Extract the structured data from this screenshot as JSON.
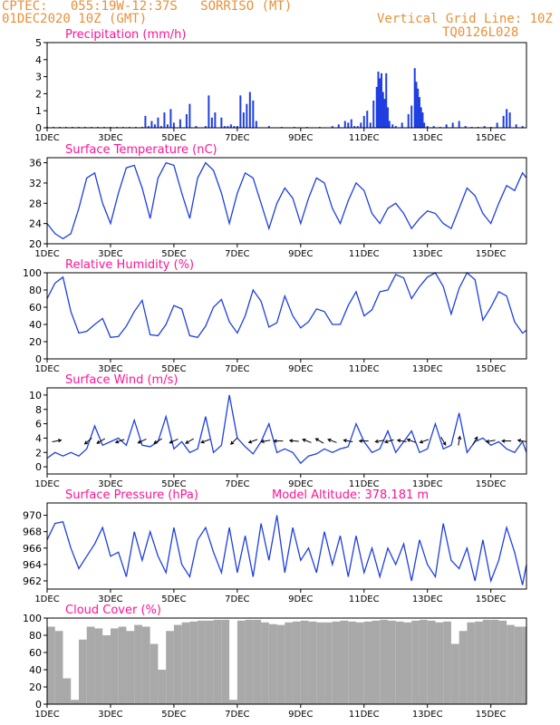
{
  "header": {
    "line1": "CPTEC:   055:19W-12:37S   SORRISO (MT)",
    "line2": "01DEC2020 10Z (GMT)",
    "grid_note": "Vertical Grid Line: 10Z",
    "code": "TQ0126L028",
    "color": "#e8903a"
  },
  "colors": {
    "title": "#ff1493",
    "series": "#1f3fe0",
    "cloud": "#a9a9a9"
  },
  "x_tick_labels": [
    "1DEC",
    "3DEC",
    "5DEC",
    "7DEC",
    "9DEC",
    "11DEC",
    "13DEC",
    "15DEC"
  ],
  "x_tick_days": [
    1,
    3,
    5,
    7,
    9,
    11,
    13,
    15
  ],
  "x_range_days": [
    1,
    16.125
  ],
  "chart_data": [
    {
      "type": "bar",
      "title": "Precipitation (mm/h)",
      "ylim": [
        0,
        5
      ],
      "yticks": [
        0,
        1,
        2,
        3,
        4,
        5
      ],
      "x": [
        1.0,
        1.2,
        1.4,
        1.6,
        1.8,
        2.0,
        2.2,
        2.4,
        2.6,
        2.8,
        3.0,
        3.2,
        3.4,
        3.6,
        3.8,
        4.0,
        4.1,
        4.2,
        4.3,
        4.4,
        4.5,
        4.6,
        4.7,
        4.8,
        4.9,
        5.0,
        5.2,
        5.4,
        5.5,
        5.7,
        6.0,
        6.1,
        6.2,
        6.3,
        6.5,
        6.6,
        6.7,
        6.8,
        6.9,
        7.0,
        7.1,
        7.2,
        7.3,
        7.4,
        7.5,
        7.6,
        8.0,
        8.4,
        8.8,
        9.2,
        9.6,
        10.0,
        10.2,
        10.4,
        10.5,
        10.6,
        10.7,
        10.8,
        10.9,
        11.0,
        11.1,
        11.2,
        11.3,
        11.4,
        11.45,
        11.5,
        11.55,
        11.6,
        11.65,
        11.7,
        11.75,
        11.8,
        11.9,
        12.0,
        12.2,
        12.4,
        12.5,
        12.6,
        12.65,
        12.7,
        12.75,
        12.8,
        12.85,
        12.9,
        13.0,
        13.2,
        13.4,
        13.6,
        13.8,
        14.0,
        14.2,
        14.4,
        14.6,
        14.8,
        15.0,
        15.2,
        15.4,
        15.5,
        15.6,
        15.8,
        16.0
      ],
      "values": [
        0.05,
        0.05,
        0.05,
        0.05,
        0.05,
        0.05,
        0.05,
        0.05,
        0.05,
        0.05,
        0.05,
        0.05,
        0.05,
        0.05,
        0.05,
        0.05,
        0.7,
        0.1,
        0.4,
        0.2,
        0.6,
        0.1,
        0.9,
        0.2,
        1.1,
        0.3,
        0.5,
        0.8,
        1.4,
        0.1,
        0.1,
        1.9,
        0.6,
        0.9,
        0.6,
        0.1,
        0.1,
        0.2,
        0.1,
        0.1,
        1.9,
        0.9,
        1.4,
        2.1,
        1.6,
        0.4,
        0.1,
        0.05,
        0.05,
        0.05,
        0.05,
        0.1,
        0.2,
        0.4,
        0.3,
        0.5,
        0.1,
        0.1,
        0.3,
        0.7,
        1.0,
        0.3,
        1.6,
        2.4,
        3.3,
        2.9,
        3.2,
        2.1,
        1.7,
        3.2,
        1.2,
        0.4,
        0.2,
        0.1,
        0.3,
        0.8,
        1.3,
        3.5,
        2.7,
        2.3,
        1.8,
        1.2,
        0.9,
        0.3,
        0.1,
        0.1,
        0.05,
        0.2,
        0.3,
        0.4,
        0.1,
        0.05,
        0.05,
        0.1,
        0.05,
        0.3,
        0.7,
        1.1,
        0.9,
        0.2,
        0.1
      ]
    },
    {
      "type": "line",
      "title": "Surface Temperature (nC)",
      "ylim": [
        20,
        37
      ],
      "yticks": [
        20,
        24,
        28,
        32,
        36
      ],
      "x": [
        1.0,
        1.25,
        1.5,
        1.75,
        2.0,
        2.25,
        2.5,
        2.75,
        3.0,
        3.25,
        3.5,
        3.75,
        4.0,
        4.25,
        4.5,
        4.75,
        5.0,
        5.25,
        5.5,
        5.75,
        6.0,
        6.25,
        6.5,
        6.75,
        7.0,
        7.25,
        7.5,
        7.75,
        8.0,
        8.25,
        8.5,
        8.75,
        9.0,
        9.25,
        9.5,
        9.75,
        10.0,
        10.25,
        10.5,
        10.75,
        11.0,
        11.25,
        11.5,
        11.75,
        12.0,
        12.25,
        12.5,
        12.75,
        13.0,
        13.25,
        13.5,
        13.75,
        14.0,
        14.25,
        14.5,
        14.75,
        15.0,
        15.25,
        15.5,
        15.75,
        16.0,
        16.125
      ],
      "values": [
        24.0,
        22.0,
        21.0,
        22.0,
        27.0,
        33.0,
        34.0,
        28.0,
        24.0,
        30.0,
        35.0,
        35.5,
        31.0,
        25.0,
        33.0,
        36.0,
        35.5,
        30.0,
        25.0,
        33.0,
        36.0,
        34.5,
        30.0,
        24.0,
        30.0,
        34.0,
        33.0,
        28.0,
        23.0,
        28.0,
        31.0,
        29.0,
        24.0,
        29.0,
        33.0,
        32.0,
        27.0,
        24.0,
        28.5,
        32.0,
        30.5,
        26.0,
        24.0,
        27.0,
        28.0,
        26.0,
        23.0,
        25.0,
        26.5,
        26.0,
        24.0,
        23.0,
        27.0,
        31.0,
        29.5,
        26.0,
        24.0,
        28.0,
        31.5,
        30.5,
        34.0,
        33.0
      ],
      "color": "#1f3fe0"
    },
    {
      "type": "line",
      "title": "Relative Humidity (%)",
      "ylim": [
        0,
        100
      ],
      "yticks": [
        0,
        20,
        40,
        60,
        80,
        100
      ],
      "x": [
        1.0,
        1.25,
        1.5,
        1.75,
        2.0,
        2.25,
        2.5,
        2.75,
        3.0,
        3.25,
        3.5,
        3.75,
        4.0,
        4.25,
        4.5,
        4.75,
        5.0,
        5.25,
        5.5,
        5.75,
        6.0,
        6.25,
        6.5,
        6.75,
        7.0,
        7.25,
        7.5,
        7.75,
        8.0,
        8.25,
        8.5,
        8.75,
        9.0,
        9.25,
        9.5,
        9.75,
        10.0,
        10.25,
        10.5,
        10.75,
        11.0,
        11.25,
        11.5,
        11.75,
        12.0,
        12.25,
        12.5,
        12.75,
        13.0,
        13.25,
        13.5,
        13.75,
        14.0,
        14.25,
        14.5,
        14.75,
        15.0,
        15.25,
        15.5,
        15.75,
        16.0,
        16.125
      ],
      "values": [
        70.0,
        88.0,
        95.0,
        55.0,
        30.0,
        32.0,
        40.0,
        47.0,
        25.0,
        26.0,
        38.0,
        55.0,
        68.0,
        28.0,
        27.0,
        40.0,
        62.0,
        58.0,
        27.0,
        25.0,
        38.0,
        60.0,
        69.0,
        43.0,
        30.0,
        50.0,
        80.0,
        67.0,
        37.0,
        42.0,
        73.0,
        50.0,
        36.0,
        43.0,
        58.0,
        55.0,
        40.0,
        40.0,
        62.0,
        78.0,
        50.0,
        57.0,
        78.0,
        80.0,
        98.0,
        94.0,
        70.0,
        84.0,
        95.0,
        100.0,
        84.0,
        52.0,
        82.0,
        100.0,
        92.0,
        45.0,
        60.0,
        78.0,
        73.0,
        43.0,
        30.0,
        33.0
      ],
      "color": "#1f3fe0"
    },
    {
      "type": "line",
      "title": "Surface Wind (m/s)",
      "ylim": [
        -1,
        11
      ],
      "yticks": [
        0,
        2,
        4,
        6,
        8,
        10
      ],
      "x": [
        1.0,
        1.25,
        1.5,
        1.75,
        2.0,
        2.25,
        2.5,
        2.75,
        3.0,
        3.25,
        3.5,
        3.75,
        4.0,
        4.25,
        4.5,
        4.75,
        5.0,
        5.25,
        5.5,
        5.75,
        6.0,
        6.25,
        6.5,
        6.75,
        7.0,
        7.25,
        7.5,
        7.75,
        8.0,
        8.25,
        8.5,
        8.75,
        9.0,
        9.25,
        9.5,
        9.75,
        10.0,
        10.25,
        10.5,
        10.75,
        11.0,
        11.25,
        11.5,
        11.75,
        12.0,
        12.25,
        12.5,
        12.75,
        13.0,
        13.25,
        13.5,
        13.75,
        14.0,
        14.25,
        14.5,
        14.75,
        15.0,
        15.25,
        15.5,
        15.75,
        16.0,
        16.125
      ],
      "values": [
        1.2,
        2.0,
        1.5,
        2.0,
        1.5,
        2.5,
        5.7,
        3.0,
        3.5,
        4.0,
        3.0,
        6.5,
        3.0,
        2.8,
        3.5,
        7.0,
        2.5,
        3.5,
        2.0,
        2.5,
        7.0,
        2.0,
        3.0,
        10.0,
        4.0,
        2.8,
        1.8,
        3.5,
        6.0,
        2.0,
        2.5,
        2.0,
        0.5,
        1.5,
        1.8,
        2.5,
        2.0,
        2.5,
        2.8,
        6.0,
        3.5,
        2.0,
        2.5,
        5.0,
        2.0,
        3.5,
        5.0,
        2.0,
        2.5,
        6.0,
        2.5,
        3.0,
        7.5,
        2.0,
        3.5,
        4.0,
        3.0,
        3.5,
        2.5,
        2.0,
        3.5,
        2.0
      ],
      "arrows_x": [
        1.3,
        2.3,
        2.7,
        3.3,
        4.0,
        4.5,
        5.0,
        5.5,
        6.0,
        6.9,
        7.5,
        7.9,
        8.3,
        8.8,
        9.2,
        9.6,
        10.0,
        10.5,
        11.0,
        11.5,
        11.8,
        12.2,
        12.5,
        12.9,
        13.5,
        14.0,
        14.5,
        15.0,
        15.5,
        16.0
      ],
      "arrows_dir_deg": [
        10,
        220,
        210,
        200,
        205,
        210,
        205,
        210,
        200,
        225,
        200,
        190,
        180,
        175,
        160,
        150,
        160,
        170,
        180,
        190,
        195,
        170,
        160,
        200,
        300,
        80,
        60,
        190,
        180,
        170
      ],
      "color": "#1f3fe0"
    },
    {
      "type": "line",
      "title": "Surface Pressure (hPa)",
      "annotation": "Model Altitude: 378.181 m",
      "ylim": [
        961,
        971.5
      ],
      "yticks": [
        962,
        964,
        966,
        968,
        970
      ],
      "x": [
        1.0,
        1.25,
        1.5,
        1.75,
        2.0,
        2.25,
        2.5,
        2.75,
        3.0,
        3.25,
        3.5,
        3.75,
        4.0,
        4.25,
        4.5,
        4.75,
        5.0,
        5.25,
        5.5,
        5.75,
        6.0,
        6.25,
        6.5,
        6.75,
        7.0,
        7.25,
        7.5,
        7.75,
        8.0,
        8.25,
        8.5,
        8.75,
        9.0,
        9.25,
        9.5,
        9.75,
        10.0,
        10.25,
        10.5,
        10.75,
        11.0,
        11.25,
        11.5,
        11.75,
        12.0,
        12.25,
        12.5,
        12.75,
        13.0,
        13.25,
        13.5,
        13.75,
        14.0,
        14.25,
        14.5,
        14.75,
        15.0,
        15.25,
        15.5,
        15.75,
        16.0,
        16.125
      ],
      "values": [
        967.0,
        969.0,
        969.2,
        966.0,
        963.5,
        965.0,
        966.5,
        968.5,
        965.0,
        965.5,
        962.5,
        968.0,
        964.5,
        968.0,
        965.0,
        963.0,
        968.5,
        964.0,
        962.5,
        967.0,
        968.5,
        965.5,
        963.0,
        968.5,
        963.0,
        967.5,
        962.5,
        969.0,
        964.5,
        970.0,
        963.0,
        968.5,
        964.5,
        966.0,
        963.0,
        968.0,
        964.0,
        967.5,
        962.5,
        967.5,
        963.0,
        966.0,
        962.5,
        966.0,
        964.0,
        966.5,
        962.0,
        967.0,
        964.0,
        962.5,
        969.0,
        964.5,
        963.5,
        966.0,
        962.0,
        967.0,
        962.0,
        964.5,
        968.5,
        965.5,
        961.5,
        964.0
      ],
      "color": "#1f3fe0"
    },
    {
      "type": "area",
      "title": "Cloud Cover (%)",
      "ylim": [
        0,
        100
      ],
      "yticks": [
        0,
        20,
        40,
        60,
        80,
        100
      ],
      "x": [
        1.0,
        1.25,
        1.5,
        1.75,
        2.0,
        2.25,
        2.5,
        2.75,
        3.0,
        3.25,
        3.5,
        3.75,
        4.0,
        4.25,
        4.5,
        4.75,
        5.0,
        5.25,
        5.5,
        5.75,
        6.0,
        6.25,
        6.5,
        6.75,
        7.0,
        7.25,
        7.5,
        7.75,
        8.0,
        8.25,
        8.5,
        8.75,
        9.0,
        9.25,
        9.5,
        9.75,
        10.0,
        10.25,
        10.5,
        10.75,
        11.0,
        11.25,
        11.5,
        11.75,
        12.0,
        12.25,
        12.5,
        12.75,
        13.0,
        13.25,
        13.5,
        13.75,
        14.0,
        14.25,
        14.5,
        14.75,
        15.0,
        15.25,
        15.5,
        15.75,
        16.0,
        16.125
      ],
      "values": [
        90.0,
        85.0,
        30.0,
        5.0,
        75.0,
        90.0,
        88.0,
        80.0,
        88.0,
        90.0,
        85.0,
        92.0,
        90.0,
        70.0,
        40.0,
        85.0,
        92.0,
        95.0,
        96.0,
        97.0,
        97.0,
        98.0,
        98.0,
        5.0,
        97.0,
        98.0,
        98.0,
        95.0,
        93.0,
        92.0,
        95.0,
        96.0,
        97.0,
        96.0,
        95.0,
        95.0,
        96.0,
        97.0,
        96.0,
        95.0,
        96.0,
        97.0,
        98.0,
        97.0,
        96.0,
        95.0,
        97.0,
        98.0,
        97.0,
        95.0,
        96.0,
        70.0,
        85.0,
        95.0,
        96.0,
        98.0,
        98.0,
        97.0,
        92.0,
        90.0,
        90.0,
        92.0
      ],
      "color": "#a9a9a9"
    }
  ]
}
